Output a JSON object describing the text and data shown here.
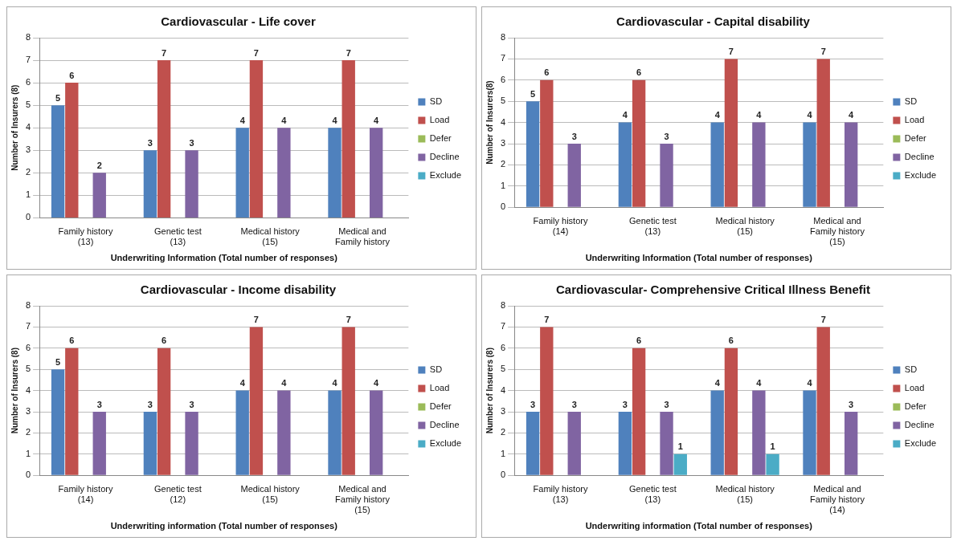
{
  "chart_data": [
    {
      "type": "bar",
      "title": "Cardiovascular - Life cover",
      "xlabel": "Underwriting Information (Total number of responses)",
      "ylabel": "Number of Insurers (8)",
      "categories": [
        "Family history (13)",
        "Genetic test (13)",
        "Medical history (15)",
        "Medical and Family history"
      ],
      "ylim": [
        0,
        8
      ],
      "yticks": [
        0,
        1,
        2,
        3,
        4,
        5,
        6,
        7,
        8
      ],
      "grid": "y",
      "legend": "right",
      "series": [
        {
          "name": "SD",
          "color": "#4f81bd",
          "values": [
            5,
            3,
            4,
            4
          ],
          "value_labels": [
            "5",
            "3",
            "4",
            "4"
          ]
        },
        {
          "name": "Load",
          "color": "#c0504d",
          "values": [
            6,
            7,
            7,
            7
          ],
          "value_labels": [
            "6",
            "7",
            "7",
            "7"
          ]
        },
        {
          "name": "Defer",
          "color": "#9bbb59",
          "values": [
            0,
            0,
            0,
            0
          ],
          "value_labels": [
            null,
            null,
            null,
            null
          ]
        },
        {
          "name": "Decline",
          "color": "#8064a2",
          "values": [
            2,
            3,
            4,
            4
          ],
          "value_labels": [
            "2",
            "3",
            "4",
            "4"
          ]
        },
        {
          "name": "Exclude",
          "color": "#4bacc6",
          "values": [
            0,
            0,
            0,
            0
          ],
          "value_labels": [
            null,
            null,
            null,
            null
          ]
        }
      ]
    },
    {
      "type": "bar",
      "title": "Cardiovascular - Capital disability",
      "xlabel": "Underwriting Information (Total number of responses)",
      "ylabel": "Number of Insurers(8)",
      "categories": [
        "Family history (14)",
        "Genetic test (13)",
        "Medical history (15)",
        "Medical and Family history (15)"
      ],
      "ylim": [
        0,
        8
      ],
      "yticks": [
        0,
        1,
        2,
        3,
        4,
        5,
        6,
        7,
        8
      ],
      "grid": "y",
      "legend": "right",
      "series": [
        {
          "name": "SD",
          "color": "#4f81bd",
          "values": [
            5,
            4,
            4,
            4
          ],
          "value_labels": [
            "5",
            "4",
            "4",
            "4"
          ]
        },
        {
          "name": "Load",
          "color": "#c0504d",
          "values": [
            6,
            6,
            7,
            7
          ],
          "value_labels": [
            "6",
            "6",
            "7",
            "7"
          ]
        },
        {
          "name": "Defer",
          "color": "#9bbb59",
          "values": [
            0,
            0,
            0,
            0
          ],
          "value_labels": [
            null,
            null,
            null,
            null
          ]
        },
        {
          "name": "Decline",
          "color": "#8064a2",
          "values": [
            3,
            3,
            4,
            4
          ],
          "value_labels": [
            "3",
            "3",
            "4",
            "4"
          ]
        },
        {
          "name": "Exclude",
          "color": "#4bacc6",
          "values": [
            0,
            0,
            0,
            0
          ],
          "value_labels": [
            null,
            null,
            null,
            null
          ]
        }
      ]
    },
    {
      "type": "bar",
      "title": "Cardiovascular - Income disability",
      "xlabel": "Underwriting information (Total number of responses)",
      "ylabel": "Number of Insurers (8)",
      "categories": [
        "Family history (14)",
        "Genetic test (12)",
        "Medical history (15)",
        "Medical and Family history (15)"
      ],
      "ylim": [
        0,
        8
      ],
      "yticks": [
        0,
        1,
        2,
        3,
        4,
        5,
        6,
        7,
        8
      ],
      "grid": "y",
      "legend": "right",
      "series": [
        {
          "name": "SD",
          "color": "#4f81bd",
          "values": [
            5,
            3,
            4,
            4
          ],
          "value_labels": [
            "5",
            "3",
            "4",
            "4"
          ]
        },
        {
          "name": "Load",
          "color": "#c0504d",
          "values": [
            6,
            6,
            7,
            7
          ],
          "value_labels": [
            "6",
            "6",
            "7",
            "7"
          ]
        },
        {
          "name": "Defer",
          "color": "#9bbb59",
          "values": [
            0,
            0,
            0,
            0
          ],
          "value_labels": [
            null,
            null,
            null,
            null
          ]
        },
        {
          "name": "Decline",
          "color": "#8064a2",
          "values": [
            3,
            3,
            4,
            4
          ],
          "value_labels": [
            "3",
            "3",
            "4",
            "4"
          ]
        },
        {
          "name": "Exclude",
          "color": "#4bacc6",
          "values": [
            0,
            0,
            0,
            0
          ],
          "value_labels": [
            null,
            null,
            null,
            null
          ]
        }
      ]
    },
    {
      "type": "bar",
      "title": "Cardiovascular- Comprehensive Critical Illness Benefit",
      "xlabel": "Underwriting information (Total number of responses)",
      "ylabel": "Number of Insurers (8)",
      "categories": [
        "Family history (13)",
        "Genetic test (13)",
        "Medical history (15)",
        "Medical and Family history (14)"
      ],
      "ylim": [
        0,
        8
      ],
      "yticks": [
        0,
        1,
        2,
        3,
        4,
        5,
        6,
        7,
        8
      ],
      "grid": "y",
      "legend": "right",
      "series": [
        {
          "name": "SD",
          "color": "#4f81bd",
          "values": [
            3,
            3,
            4,
            4
          ],
          "value_labels": [
            "3",
            "3",
            "4",
            "4"
          ]
        },
        {
          "name": "Load",
          "color": "#c0504d",
          "values": [
            7,
            6,
            6,
            7
          ],
          "value_labels": [
            "7",
            "6",
            "6",
            "7"
          ]
        },
        {
          "name": "Defer",
          "color": "#9bbb59",
          "values": [
            0,
            0,
            0,
            0
          ],
          "value_labels": [
            null,
            null,
            null,
            null
          ]
        },
        {
          "name": "Decline",
          "color": "#8064a2",
          "values": [
            3,
            3,
            4,
            3
          ],
          "value_labels": [
            "3",
            "3",
            "4",
            "3"
          ]
        },
        {
          "name": "Exclude",
          "color": "#4bacc6",
          "values": [
            0,
            1,
            1,
            0
          ],
          "value_labels": [
            null,
            "1",
            "1",
            null
          ]
        }
      ]
    }
  ]
}
